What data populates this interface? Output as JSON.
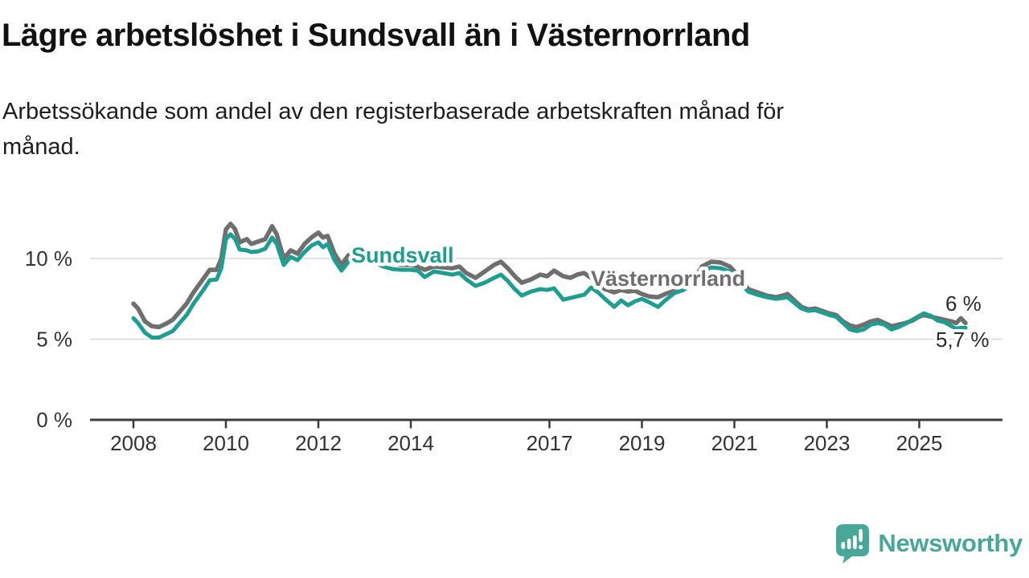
{
  "chart_data": {
    "type": "line",
    "title": "Lägre arbetslöshet i Sundsvall än i Västernorrland",
    "subtitle_lines": [
      "Arbetssökande som andel av den registerbaserade arbetskraften månad för",
      "månad."
    ],
    "unit": "%",
    "grid": true,
    "legend": "inline-series-labels",
    "x_axis": {
      "range": [
        2007.05,
        2026.8
      ],
      "ticks": [
        {
          "label": "2008",
          "value": 2008
        },
        {
          "label": "2010",
          "value": 2010
        },
        {
          "label": "2012",
          "value": 2012
        },
        {
          "label": "2014",
          "value": 2014
        },
        {
          "label": "2017",
          "value": 2017
        },
        {
          "label": "2019",
          "value": 2019
        },
        {
          "label": "2021",
          "value": 2021
        },
        {
          "label": "2023",
          "value": 2023
        },
        {
          "label": "2025",
          "value": 2025
        }
      ]
    },
    "y_axis": {
      "range": [
        0,
        14
      ],
      "ticks": [
        {
          "label": "0 %",
          "value": 0
        },
        {
          "label": "5 %",
          "value": 5
        },
        {
          "label": "10 %",
          "value": 10
        }
      ]
    },
    "series": [
      {
        "name": "Västernorrland",
        "color": "#6f6f6f",
        "end_label": "6 %",
        "points": [
          [
            2008.0,
            7.2
          ],
          [
            2008.1,
            6.9
          ],
          [
            2008.25,
            6.1
          ],
          [
            2008.4,
            5.8
          ],
          [
            2008.55,
            5.75
          ],
          [
            2008.7,
            5.95
          ],
          [
            2008.85,
            6.2
          ],
          [
            2009.0,
            6.7
          ],
          [
            2009.15,
            7.2
          ],
          [
            2009.3,
            7.9
          ],
          [
            2009.5,
            8.7
          ],
          [
            2009.65,
            9.3
          ],
          [
            2009.8,
            9.3
          ],
          [
            2009.9,
            10.0
          ],
          [
            2010.0,
            11.8
          ],
          [
            2010.1,
            12.15
          ],
          [
            2010.2,
            11.8
          ],
          [
            2010.3,
            11.0
          ],
          [
            2010.45,
            11.2
          ],
          [
            2010.55,
            10.9
          ],
          [
            2010.7,
            11.05
          ],
          [
            2010.85,
            11.2
          ],
          [
            2011.0,
            12.0
          ],
          [
            2011.1,
            11.5
          ],
          [
            2011.25,
            10.0
          ],
          [
            2011.4,
            10.5
          ],
          [
            2011.55,
            10.3
          ],
          [
            2011.7,
            10.9
          ],
          [
            2011.85,
            11.3
          ],
          [
            2012.0,
            11.6
          ],
          [
            2012.1,
            11.3
          ],
          [
            2012.2,
            11.4
          ],
          [
            2012.35,
            10.3
          ],
          [
            2012.5,
            9.6
          ],
          [
            2012.65,
            10.2
          ],
          [
            2012.8,
            10.4
          ],
          [
            2013.0,
            10.5
          ],
          [
            2013.2,
            10.2
          ],
          [
            2013.4,
            9.9
          ],
          [
            2013.6,
            9.7
          ],
          [
            2013.8,
            9.6
          ],
          [
            2014.0,
            9.6
          ],
          [
            2014.15,
            9.5
          ],
          [
            2014.3,
            9.3
          ],
          [
            2014.5,
            9.5
          ],
          [
            2014.7,
            9.45
          ],
          [
            2014.9,
            9.4
          ],
          [
            2015.05,
            9.5
          ],
          [
            2015.2,
            9.1
          ],
          [
            2015.4,
            8.8
          ],
          [
            2015.6,
            9.2
          ],
          [
            2015.8,
            9.6
          ],
          [
            2015.95,
            9.8
          ],
          [
            2016.1,
            9.4
          ],
          [
            2016.25,
            8.9
          ],
          [
            2016.4,
            8.5
          ],
          [
            2016.6,
            8.7
          ],
          [
            2016.8,
            9.0
          ],
          [
            2016.95,
            8.9
          ],
          [
            2017.1,
            9.25
          ],
          [
            2017.3,
            8.9
          ],
          [
            2017.45,
            8.8
          ],
          [
            2017.6,
            9.0
          ],
          [
            2017.75,
            9.1
          ],
          [
            2017.9,
            8.8
          ],
          [
            2018.05,
            8.5
          ],
          [
            2018.2,
            8.1
          ],
          [
            2018.4,
            7.9
          ],
          [
            2018.55,
            8.05
          ],
          [
            2018.7,
            7.95
          ],
          [
            2018.85,
            8.0
          ],
          [
            2019.0,
            7.8
          ],
          [
            2019.15,
            7.65
          ],
          [
            2019.35,
            7.6
          ],
          [
            2019.5,
            7.8
          ],
          [
            2019.7,
            8.0
          ],
          [
            2019.9,
            8.1
          ],
          [
            2020.1,
            8.6
          ],
          [
            2020.3,
            9.5
          ],
          [
            2020.5,
            9.8
          ],
          [
            2020.7,
            9.75
          ],
          [
            2020.9,
            9.5
          ],
          [
            2021.1,
            8.9
          ],
          [
            2021.3,
            8.1
          ],
          [
            2021.5,
            7.9
          ],
          [
            2021.7,
            7.7
          ],
          [
            2021.9,
            7.6
          ],
          [
            2022.05,
            7.7
          ],
          [
            2022.15,
            7.8
          ],
          [
            2022.3,
            7.4
          ],
          [
            2022.45,
            7.0
          ],
          [
            2022.6,
            6.85
          ],
          [
            2022.75,
            6.9
          ],
          [
            2022.9,
            6.75
          ],
          [
            2023.05,
            6.6
          ],
          [
            2023.2,
            6.5
          ],
          [
            2023.35,
            6.1
          ],
          [
            2023.5,
            5.85
          ],
          [
            2023.65,
            5.75
          ],
          [
            2023.8,
            5.9
          ],
          [
            2023.95,
            6.1
          ],
          [
            2024.1,
            6.2
          ],
          [
            2024.25,
            6.0
          ],
          [
            2024.4,
            5.8
          ],
          [
            2024.55,
            5.9
          ],
          [
            2024.7,
            6.0
          ],
          [
            2024.85,
            6.15
          ],
          [
            2025.0,
            6.4
          ],
          [
            2025.1,
            6.5
          ],
          [
            2025.25,
            6.4
          ],
          [
            2025.4,
            6.3
          ],
          [
            2025.55,
            6.2
          ],
          [
            2025.7,
            6.1
          ],
          [
            2025.8,
            6.0
          ],
          [
            2025.9,
            6.3
          ],
          [
            2026.0,
            6.0
          ]
        ]
      },
      {
        "name": "Sundsvall",
        "color": "#1d9e90",
        "end_label": "5,7 %",
        "points": [
          [
            2008.0,
            6.3
          ],
          [
            2008.1,
            6.0
          ],
          [
            2008.25,
            5.4
          ],
          [
            2008.4,
            5.1
          ],
          [
            2008.55,
            5.1
          ],
          [
            2008.7,
            5.3
          ],
          [
            2008.85,
            5.5
          ],
          [
            2009.0,
            6.0
          ],
          [
            2009.15,
            6.5
          ],
          [
            2009.3,
            7.2
          ],
          [
            2009.5,
            8.0
          ],
          [
            2009.65,
            8.65
          ],
          [
            2009.8,
            8.7
          ],
          [
            2009.9,
            9.4
          ],
          [
            2010.0,
            11.2
          ],
          [
            2010.1,
            11.5
          ],
          [
            2010.2,
            11.2
          ],
          [
            2010.3,
            10.55
          ],
          [
            2010.45,
            10.5
          ],
          [
            2010.55,
            10.4
          ],
          [
            2010.7,
            10.45
          ],
          [
            2010.85,
            10.6
          ],
          [
            2011.0,
            11.3
          ],
          [
            2011.1,
            10.9
          ],
          [
            2011.25,
            9.6
          ],
          [
            2011.4,
            10.1
          ],
          [
            2011.55,
            9.9
          ],
          [
            2011.7,
            10.4
          ],
          [
            2011.85,
            10.8
          ],
          [
            2012.0,
            11.0
          ],
          [
            2012.1,
            10.7
          ],
          [
            2012.2,
            10.9
          ],
          [
            2012.35,
            9.9
          ],
          [
            2012.5,
            9.25
          ],
          [
            2012.65,
            9.8
          ],
          [
            2012.8,
            10.0
          ],
          [
            2013.0,
            10.1
          ],
          [
            2013.2,
            9.8
          ],
          [
            2013.4,
            9.5
          ],
          [
            2013.6,
            9.35
          ],
          [
            2013.8,
            9.3
          ],
          [
            2014.0,
            9.3
          ],
          [
            2014.15,
            9.25
          ],
          [
            2014.3,
            8.85
          ],
          [
            2014.5,
            9.2
          ],
          [
            2014.7,
            9.1
          ],
          [
            2014.9,
            9.0
          ],
          [
            2015.05,
            9.1
          ],
          [
            2015.2,
            8.7
          ],
          [
            2015.4,
            8.3
          ],
          [
            2015.6,
            8.5
          ],
          [
            2015.8,
            8.8
          ],
          [
            2015.95,
            9.0
          ],
          [
            2016.1,
            8.6
          ],
          [
            2016.25,
            8.1
          ],
          [
            2016.4,
            7.7
          ],
          [
            2016.6,
            7.95
          ],
          [
            2016.8,
            8.1
          ],
          [
            2016.95,
            8.05
          ],
          [
            2017.1,
            8.15
          ],
          [
            2017.3,
            7.45
          ],
          [
            2017.45,
            7.55
          ],
          [
            2017.6,
            7.65
          ],
          [
            2017.75,
            7.75
          ],
          [
            2017.9,
            8.2
          ],
          [
            2018.05,
            7.9
          ],
          [
            2018.2,
            7.5
          ],
          [
            2018.4,
            7.0
          ],
          [
            2018.55,
            7.4
          ],
          [
            2018.7,
            7.1
          ],
          [
            2018.85,
            7.35
          ],
          [
            2019.0,
            7.5
          ],
          [
            2019.15,
            7.3
          ],
          [
            2019.35,
            7.0
          ],
          [
            2019.5,
            7.4
          ],
          [
            2019.7,
            7.85
          ],
          [
            2019.9,
            8.05
          ],
          [
            2020.1,
            8.5
          ],
          [
            2020.3,
            9.2
          ],
          [
            2020.5,
            9.45
          ],
          [
            2020.7,
            9.4
          ],
          [
            2020.9,
            9.2
          ],
          [
            2021.1,
            8.6
          ],
          [
            2021.3,
            7.95
          ],
          [
            2021.5,
            7.75
          ],
          [
            2021.7,
            7.6
          ],
          [
            2021.9,
            7.5
          ],
          [
            2022.05,
            7.55
          ],
          [
            2022.15,
            7.6
          ],
          [
            2022.3,
            7.25
          ],
          [
            2022.45,
            6.9
          ],
          [
            2022.6,
            6.75
          ],
          [
            2022.75,
            6.8
          ],
          [
            2022.9,
            6.65
          ],
          [
            2023.05,
            6.5
          ],
          [
            2023.2,
            6.4
          ],
          [
            2023.35,
            6.0
          ],
          [
            2023.5,
            5.6
          ],
          [
            2023.65,
            5.5
          ],
          [
            2023.8,
            5.6
          ],
          [
            2023.95,
            5.9
          ],
          [
            2024.1,
            6.0
          ],
          [
            2024.25,
            5.9
          ],
          [
            2024.4,
            5.6
          ],
          [
            2024.55,
            5.75
          ],
          [
            2024.7,
            5.95
          ],
          [
            2024.85,
            6.2
          ],
          [
            2025.0,
            6.45
          ],
          [
            2025.1,
            6.6
          ],
          [
            2025.25,
            6.45
          ],
          [
            2025.4,
            6.15
          ],
          [
            2025.55,
            6.05
          ],
          [
            2025.7,
            5.8
          ],
          [
            2025.8,
            5.65
          ],
          [
            2025.9,
            5.7
          ],
          [
            2026.0,
            5.7
          ]
        ]
      }
    ],
    "colors": {
      "axis": "#3c3c3c",
      "gridline": "#d8d8d8",
      "tick_label": "#333333",
      "end_label": "#2b2b2b"
    }
  },
  "footer": {
    "brand": "Newsworthy",
    "brand_color": "#47a89a"
  }
}
